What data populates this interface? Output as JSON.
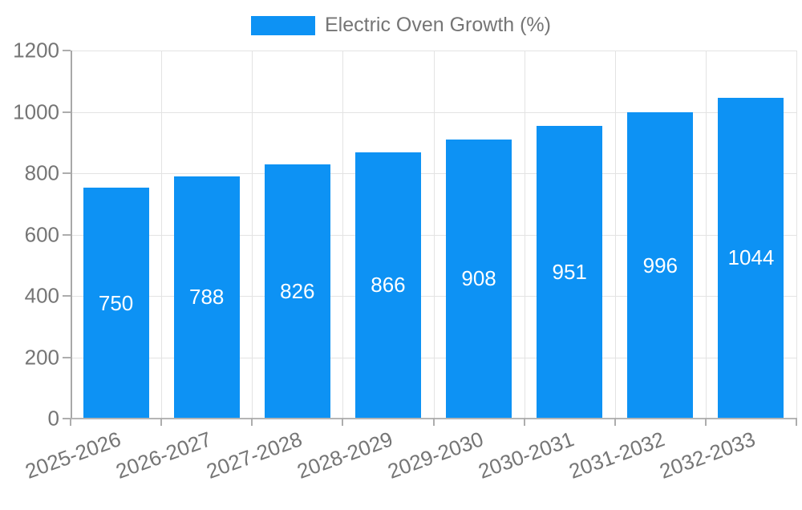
{
  "chart_data": {
    "type": "bar",
    "title": "",
    "legend_label": "Electric Oven Growth (%)",
    "legend_position": "top-center",
    "categories": [
      "2025-2026",
      "2026-2027",
      "2027-2028",
      "2028-2029",
      "2029-2030",
      "2030-2031",
      "2031-2032",
      "2032-2033"
    ],
    "values": [
      750,
      788,
      826,
      866,
      908,
      951,
      996,
      1044
    ],
    "xlabel": "",
    "ylabel": "",
    "ylim": [
      0,
      1200
    ],
    "yticks": [
      0,
      200,
      400,
      600,
      800,
      1000,
      1200
    ],
    "grid": true,
    "x_tick_rotation_deg": -20,
    "bar_labels_inside": true,
    "colors": {
      "bar": "#0d92f4",
      "bar_label": "#ffffff",
      "grid": "#e3e3e3",
      "axis": "#adadad",
      "tick_label": "#757575",
      "legend_text": "#757575",
      "background": "#ffffff"
    }
  }
}
